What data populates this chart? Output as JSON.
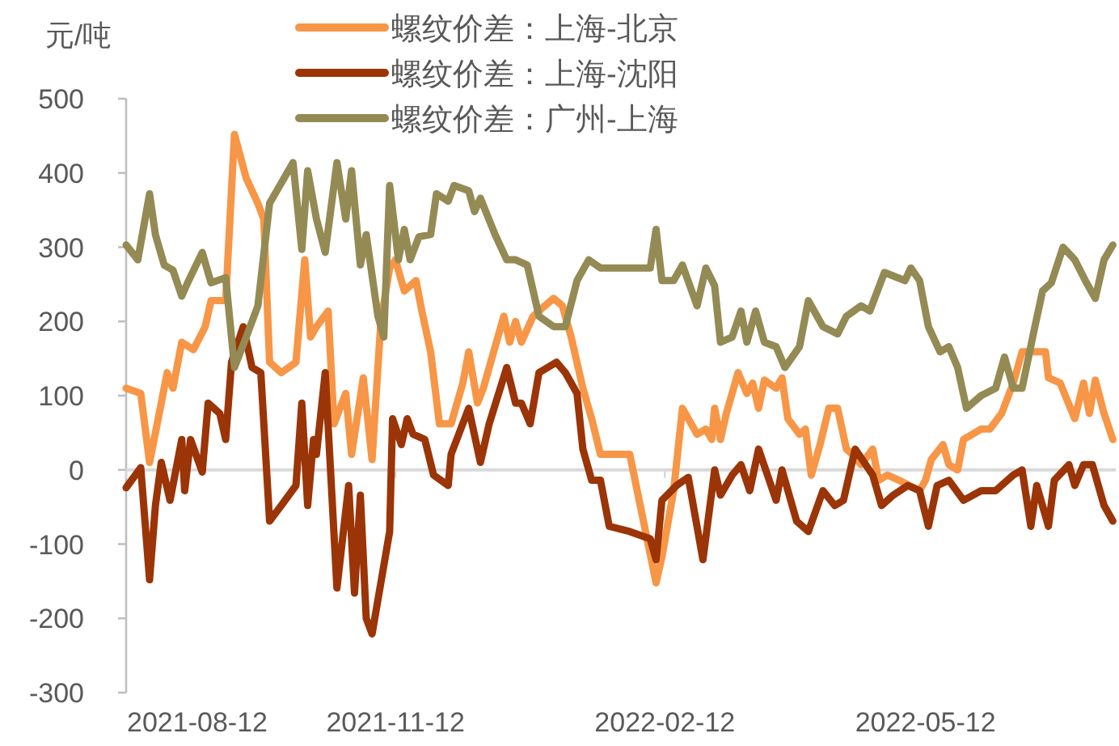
{
  "chart_data": {
    "type": "line",
    "ylabel": "元/吨",
    "xlim": [
      "2021-08-12",
      "2022-07-16"
    ],
    "xticks": [
      "2021-08-12",
      "2021-11-12",
      "2022-02-12",
      "2022-05-12"
    ],
    "ylim": [
      -300,
      500
    ],
    "yticks": [
      -300,
      -200,
      -100,
      0,
      100,
      200,
      300,
      400,
      500
    ],
    "legend": "top",
    "grid": false,
    "ref_lines": [
      {
        "axis": "y",
        "value": 0,
        "color": "#d9d9d9"
      }
    ],
    "series": [
      {
        "name": "螺纹价差：上海-北京",
        "color": "#f79646",
        "x": [
          "2021-08-12",
          "2021-08-17",
          "2021-08-20",
          "2021-08-24",
          "2021-08-26",
          "2021-08-28",
          "2021-08-31",
          "2021-09-04",
          "2021-09-08",
          "2021-09-10",
          "2021-09-15",
          "2021-09-18",
          "2021-09-22",
          "2021-09-26",
          "2021-09-28",
          "2021-09-30",
          "2021-10-04",
          "2021-10-09",
          "2021-10-12",
          "2021-10-14",
          "2021-10-16",
          "2021-10-20",
          "2021-10-22",
          "2021-10-26",
          "2021-10-28",
          "2021-11-01",
          "2021-11-04",
          "2021-11-07",
          "2021-11-10",
          "2021-11-12",
          "2021-11-15",
          "2021-11-19",
          "2021-11-21",
          "2021-11-24",
          "2021-11-27",
          "2021-12-01",
          "2021-12-05",
          "2021-12-07",
          "2021-12-10",
          "2021-12-12",
          "2021-12-19",
          "2021-12-21",
          "2021-12-23",
          "2021-12-25",
          "2021-12-29",
          "2022-01-02",
          "2022-01-05",
          "2022-01-08",
          "2022-01-11",
          "2022-01-15",
          "2022-01-18",
          "2022-01-21",
          "2022-01-31",
          "2022-02-09",
          "2022-02-11",
          "2022-02-15",
          "2022-02-18",
          "2022-02-23",
          "2022-02-26",
          "2022-02-28",
          "2022-03-01",
          "2022-03-03",
          "2022-03-05",
          "2022-03-09",
          "2022-03-12",
          "2022-03-14",
          "2022-03-16",
          "2022-03-18",
          "2022-03-22",
          "2022-03-24",
          "2022-03-26",
          "2022-03-30",
          "2022-04-01",
          "2022-04-03",
          "2022-04-06",
          "2022-04-09",
          "2022-04-12",
          "2022-04-15",
          "2022-04-17",
          "2022-04-20",
          "2022-04-24",
          "2022-04-26",
          "2022-04-29",
          "2022-05-03",
          "2022-05-10",
          "2022-05-12",
          "2022-05-14",
          "2022-05-18",
          "2022-05-20",
          "2022-05-23",
          "2022-05-25",
          "2022-05-31",
          "2022-06-03",
          "2022-06-07",
          "2022-06-11",
          "2022-06-14",
          "2022-06-18",
          "2022-06-22",
          "2022-06-23",
          "2022-06-27",
          "2022-07-02",
          "2022-07-05",
          "2022-07-07",
          "2022-07-09",
          "2022-07-12",
          "2022-07-15"
        ],
        "values": [
          110,
          103,
          10,
          90,
          131,
          110,
          172,
          162,
          193,
          228,
          228,
          452,
          393,
          359,
          338,
          145,
          131,
          145,
          283,
          179,
          193,
          214,
          62,
          103,
          21,
          124,
          14,
          200,
          272,
          283,
          241,
          255,
          214,
          159,
          62,
          62,
          117,
          159,
          90,
          110,
          207,
          172,
          200,
          172,
          207,
          221,
          231,
          221,
          179,
          110,
          69,
          21,
          21,
          -152,
          -117,
          -28,
          83,
          48,
          55,
          41,
          83,
          41,
          76,
          131,
          103,
          117,
          83,
          121,
          110,
          124,
          69,
          48,
          55,
          -7,
          34,
          83,
          83,
          28,
          21,
          7,
          28,
          -14,
          -7,
          -14,
          -28,
          -14,
          14,
          34,
          7,
          0,
          41,
          55,
          55,
          76,
          117,
          159,
          159,
          159,
          124,
          117,
          69,
          117,
          76,
          121,
          76,
          41
        ]
      },
      {
        "name": "螺纹价差：上海-沈阳",
        "color": "#9b3407",
        "x": [
          "2021-08-12",
          "2021-08-17",
          "2021-08-20",
          "2021-08-22",
          "2021-08-24",
          "2021-08-27",
          "2021-08-31",
          "2021-09-01",
          "2021-09-03",
          "2021-09-07",
          "2021-09-09",
          "2021-09-13",
          "2021-09-15",
          "2021-09-17",
          "2021-09-21",
          "2021-09-24",
          "2021-09-27",
          "2021-09-30",
          "2021-10-04",
          "2021-10-09",
          "2021-10-11",
          "2021-10-13",
          "2021-10-15",
          "2021-10-16",
          "2021-10-19",
          "2021-10-23",
          "2021-10-27",
          "2021-10-29",
          "2021-10-31",
          "2021-11-02",
          "2021-11-04",
          "2021-11-07",
          "2021-11-10",
          "2021-11-11",
          "2021-11-14",
          "2021-11-16",
          "2021-11-18",
          "2021-11-22",
          "2021-11-25",
          "2021-11-30",
          "2021-12-01",
          "2021-12-07",
          "2021-12-11",
          "2021-12-14",
          "2021-12-20",
          "2021-12-23",
          "2021-12-25",
          "2021-12-28",
          "2021-12-31",
          "2022-01-06",
          "2022-01-09",
          "2022-01-13",
          "2022-01-15",
          "2022-01-18",
          "2022-01-21",
          "2022-01-24",
          "2022-01-31",
          "2022-02-07",
          "2022-02-09",
          "2022-02-11",
          "2022-02-16",
          "2022-02-20",
          "2022-02-25",
          "2022-03-01",
          "2022-03-03",
          "2022-03-07",
          "2022-03-10",
          "2022-03-13",
          "2022-03-16",
          "2022-03-22",
          "2022-03-24",
          "2022-03-29",
          "2022-04-02",
          "2022-04-07",
          "2022-04-11",
          "2022-04-14",
          "2022-04-18",
          "2022-04-24",
          "2022-04-27",
          "2022-05-01",
          "2022-05-06",
          "2022-05-10",
          "2022-05-13",
          "2022-05-16",
          "2022-05-20",
          "2022-05-25",
          "2022-05-31",
          "2022-06-05",
          "2022-06-11",
          "2022-06-14",
          "2022-06-17",
          "2022-06-19",
          "2022-06-23",
          "2022-06-25",
          "2022-06-30",
          "2022-07-02",
          "2022-07-05",
          "2022-07-08",
          "2022-07-12",
          "2022-07-15"
        ],
        "values": [
          -24,
          3,
          -148,
          -48,
          10,
          -41,
          41,
          -28,
          41,
          -3,
          90,
          76,
          41,
          145,
          193,
          138,
          131,
          -69,
          -48,
          -21,
          90,
          -48,
          41,
          21,
          131,
          -159,
          -21,
          -166,
          -34,
          -200,
          -221,
          -152,
          -83,
          69,
          34,
          69,
          48,
          41,
          -7,
          -21,
          21,
          83,
          10,
          62,
          138,
          90,
          90,
          62,
          131,
          145,
          131,
          103,
          28,
          -14,
          -14,
          -76,
          -83,
          -93,
          -121,
          -41,
          -21,
          -10,
          -121,
          0,
          -34,
          -7,
          7,
          -28,
          28,
          -41,
          0,
          -69,
          -83,
          -28,
          -48,
          -41,
          28,
          -7,
          -48,
          -34,
          -21,
          -28,
          -76,
          -21,
          -14,
          -41,
          -28,
          -28,
          -7,
          0,
          -76,
          -21,
          -76,
          -14,
          7,
          -21,
          7,
          7,
          -48,
          -69
        ]
      },
      {
        "name": "螺纹价差：广州-上海",
        "color": "#948a54",
        "x": [
          "2021-08-12",
          "2021-08-16",
          "2021-08-20",
          "2021-08-22",
          "2021-08-25",
          "2021-08-28",
          "2021-08-31",
          "2021-09-02",
          "2021-09-07",
          "2021-09-10",
          "2021-09-15",
          "2021-09-18",
          "2021-09-22",
          "2021-09-26",
          "2021-09-30",
          "2021-10-08",
          "2021-10-11",
          "2021-10-13",
          "2021-10-16",
          "2021-10-19",
          "2021-10-23",
          "2021-10-26",
          "2021-10-28",
          "2021-10-31",
          "2021-11-02",
          "2021-11-06",
          "2021-11-08",
          "2021-11-10",
          "2021-11-13",
          "2021-11-15",
          "2021-11-17",
          "2021-11-20",
          "2021-11-24",
          "2021-11-26",
          "2021-11-30",
          "2021-12-02",
          "2021-12-07",
          "2021-12-09",
          "2021-12-11",
          "2021-12-16",
          "2021-12-20",
          "2021-12-23",
          "2021-12-27",
          "2021-12-31",
          "2022-01-05",
          "2022-01-09",
          "2022-01-13",
          "2022-01-17",
          "2022-01-21",
          "2022-02-07",
          "2022-02-09",
          "2022-02-11",
          "2022-02-15",
          "2022-02-18",
          "2022-02-23",
          "2022-02-26",
          "2022-03-01",
          "2022-03-03",
          "2022-03-07",
          "2022-03-10",
          "2022-03-12",
          "2022-03-15",
          "2022-03-18",
          "2022-03-22",
          "2022-03-25",
          "2022-03-30",
          "2022-04-02",
          "2022-04-07",
          "2022-04-12",
          "2022-04-15",
          "2022-04-20",
          "2022-04-23",
          "2022-04-28",
          "2022-05-05",
          "2022-05-07",
          "2022-05-10",
          "2022-05-13",
          "2022-05-17",
          "2022-05-20",
          "2022-05-23",
          "2022-05-26",
          "2022-05-31",
          "2022-06-05",
          "2022-06-08",
          "2022-06-11",
          "2022-06-14",
          "2022-06-18",
          "2022-06-21",
          "2022-06-24",
          "2022-06-28",
          "2022-07-02",
          "2022-07-06",
          "2022-07-09",
          "2022-07-12",
          "2022-07-15"
        ],
        "values": [
          303,
          283,
          372,
          317,
          276,
          269,
          234,
          252,
          293,
          252,
          259,
          138,
          179,
          221,
          359,
          414,
          297,
          403,
          338,
          293,
          414,
          338,
          403,
          276,
          317,
          207,
          179,
          383,
          283,
          324,
          283,
          314,
          317,
          372,
          362,
          383,
          376,
          348,
          366,
          317,
          283,
          283,
          276,
          207,
          193,
          193,
          255,
          283,
          272,
          272,
          324,
          255,
          255,
          276,
          221,
          272,
          248,
          172,
          179,
          214,
          172,
          214,
          172,
          166,
          138,
          166,
          228,
          193,
          183,
          207,
          221,
          214,
          266,
          255,
          272,
          255,
          193,
          159,
          166,
          138,
          83,
          100,
          110,
          152,
          110,
          110,
          186,
          241,
          252,
          300,
          283,
          252,
          231,
          283,
          303
        ]
      }
    ]
  }
}
